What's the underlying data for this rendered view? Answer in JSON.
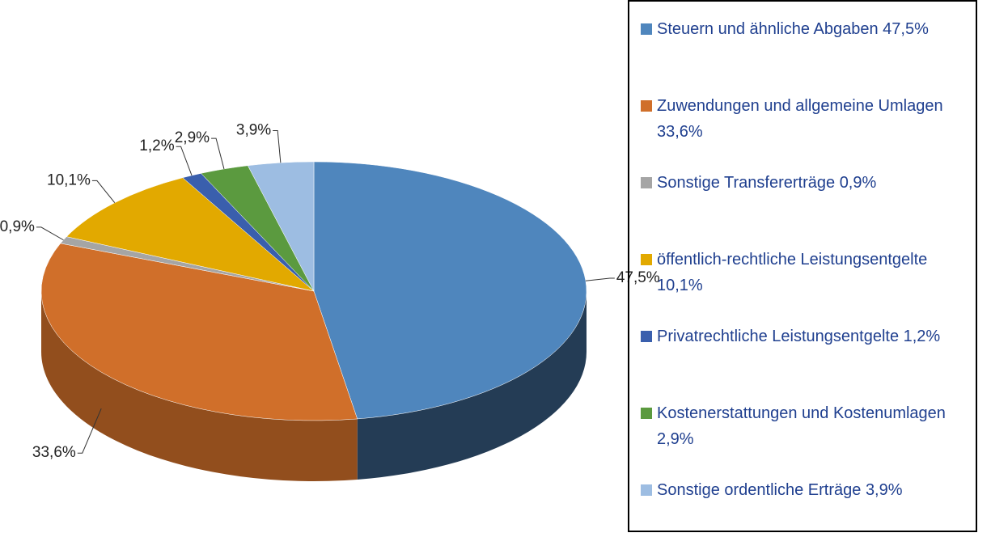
{
  "chart_data": {
    "type": "pie",
    "categories": [
      "Steuern und ähnliche Abgaben",
      "Zuwendungen und allgemeine Umlagen",
      "Sonstige Transfererträge",
      "öffentlich-rechtliche Leistungsentgelte",
      "Privatrechtliche Leistungsentgelte",
      "Kostenerstattungen und Kostenumlagen",
      "Sonstige ordentliche Erträge"
    ],
    "values": [
      47.5,
      33.6,
      0.9,
      10.1,
      1.2,
      2.9,
      3.9
    ],
    "value_labels": [
      "47,5%",
      "33,6%",
      "0,9%",
      "10,1%",
      "1,2%",
      "2,9%",
      "3,9%"
    ],
    "colors": [
      "#4f86bd",
      "#d06f2a",
      "#a5a5a5",
      "#e2a900",
      "#3a5fad",
      "#5b9a3f",
      "#9dbde2"
    ],
    "legend": "right"
  }
}
